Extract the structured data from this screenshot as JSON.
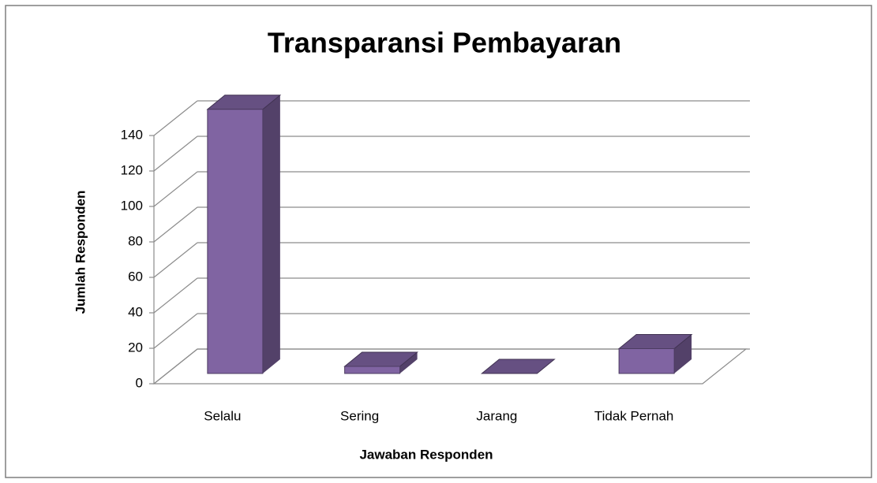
{
  "chart_data": {
    "type": "bar3d",
    "title": "Transparansi Pembayaran",
    "x_label": "Jawaban Responden",
    "y_label": "Jumlah Responden",
    "categories": [
      "Selalu",
      "Sering",
      "Jarang",
      "Tidak Pernah"
    ],
    "values": [
      149,
      4,
      0,
      14
    ],
    "color": "#8064a2",
    "ylim": [
      0,
      140
    ],
    "yticks": [
      0,
      20,
      40,
      60,
      80,
      100,
      120,
      140
    ],
    "grid": true
  }
}
